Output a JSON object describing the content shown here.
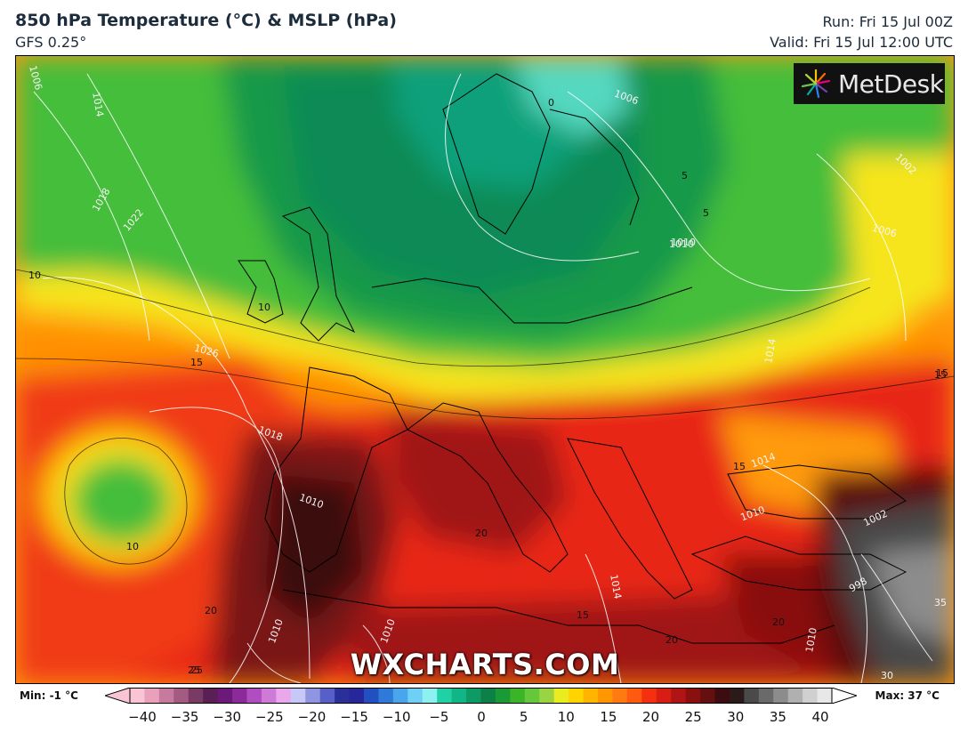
{
  "header": {
    "title": "850 hPa Temperature (°C) & MSLP (hPa)",
    "model": "GFS 0.25°",
    "run": "Run: Fri 15 Jul 00Z",
    "valid": "Valid: Fri 15 Jul 12:00 UTC"
  },
  "logo": {
    "text": "MetDesk",
    "icon": "metdesk-starburst-icon"
  },
  "watermark": "WXCHARTS.COM",
  "map_labels": [
    {
      "text": "1006",
      "kind": "isobar"
    },
    {
      "text": "1014",
      "kind": "isobar"
    },
    {
      "text": "1018",
      "kind": "isobar"
    },
    {
      "text": "1022",
      "kind": "isobar"
    },
    {
      "text": "10",
      "kind": "isotherm"
    },
    {
      "text": "10",
      "kind": "isotherm"
    },
    {
      "text": "1026",
      "kind": "isobar"
    },
    {
      "text": "15",
      "kind": "isotherm"
    },
    {
      "text": "1018",
      "kind": "isobar"
    },
    {
      "text": "1010",
      "kind": "isobar"
    },
    {
      "text": "10",
      "kind": "isotherm"
    },
    {
      "text": "20",
      "kind": "isotherm"
    },
    {
      "text": "1010",
      "kind": "isobar"
    },
    {
      "text": "1010",
      "kind": "isobar"
    },
    {
      "text": "25",
      "kind": "isotherm"
    },
    {
      "text": "1006",
      "kind": "isobar"
    },
    {
      "text": "1010",
      "kind": "isobar"
    },
    {
      "text": "5",
      "kind": "isotherm"
    },
    {
      "text": "5",
      "kind": "isotherm"
    },
    {
      "text": "1010",
      "kind": "isobar"
    },
    {
      "text": "1002",
      "kind": "isobar"
    },
    {
      "text": "1006",
      "kind": "isobar"
    },
    {
      "text": "1014",
      "kind": "isobar"
    },
    {
      "text": "15",
      "kind": "isotherm"
    },
    {
      "text": "15",
      "kind": "isotherm"
    },
    {
      "text": "1014",
      "kind": "isobar"
    },
    {
      "text": "1010",
      "kind": "isobar"
    },
    {
      "text": "1002",
      "kind": "isobar"
    },
    {
      "text": "998",
      "kind": "isobar"
    },
    {
      "text": "35",
      "kind": "isotherm"
    },
    {
      "text": "20",
      "kind": "isotherm"
    },
    {
      "text": "1014",
      "kind": "isobar"
    },
    {
      "text": "15",
      "kind": "isotherm"
    },
    {
      "text": "20",
      "kind": "isotherm"
    },
    {
      "text": "1010",
      "kind": "isobar"
    },
    {
      "text": "30",
      "kind": "isotherm"
    },
    {
      "text": "0",
      "kind": "isotherm"
    },
    {
      "text": "20",
      "kind": "isotherm"
    },
    {
      "text": "25",
      "kind": "isotherm"
    },
    {
      "text": "15",
      "kind": "isotherm"
    }
  ],
  "legend": {
    "min": "Min: -1 °C",
    "max": "Max: 37 °C",
    "ticks": [
      "−40",
      "−35",
      "−30",
      "−25",
      "−20",
      "−15",
      "−10",
      "−5",
      "0",
      "5",
      "10",
      "15",
      "20",
      "25",
      "30",
      "35",
      "40"
    ],
    "colors": [
      "#f9c4d4",
      "#e8a0bb",
      "#c87a9e",
      "#a35b82",
      "#7a3a66",
      "#5a1f55",
      "#6b1a7a",
      "#8c2a9a",
      "#b04dc0",
      "#d07ad8",
      "#e9a8ea",
      "#c8c8f8",
      "#8f95e0",
      "#5860c8",
      "#2a2f9a",
      "#27279a",
      "#2350c0",
      "#2f7ad8",
      "#4aa6ec",
      "#6fd0f5",
      "#8ff0f0",
      "#1fd1a5",
      "#12b585",
      "#0e9a64",
      "#0c8046",
      "#1a9a34",
      "#3cb42a",
      "#64c83a",
      "#9ad442",
      "#e8ec20",
      "#ffd400",
      "#ffb400",
      "#ff9800",
      "#ff7a10",
      "#ff5a10",
      "#f43010",
      "#d81e12",
      "#b01414",
      "#8a1010",
      "#641010",
      "#3c0c10",
      "#2a1a1a",
      "#4a4a4a",
      "#6a6a6a",
      "#8c8c8c",
      "#b0b0b0",
      "#d0d0d0",
      "#e8e8e8"
    ]
  }
}
